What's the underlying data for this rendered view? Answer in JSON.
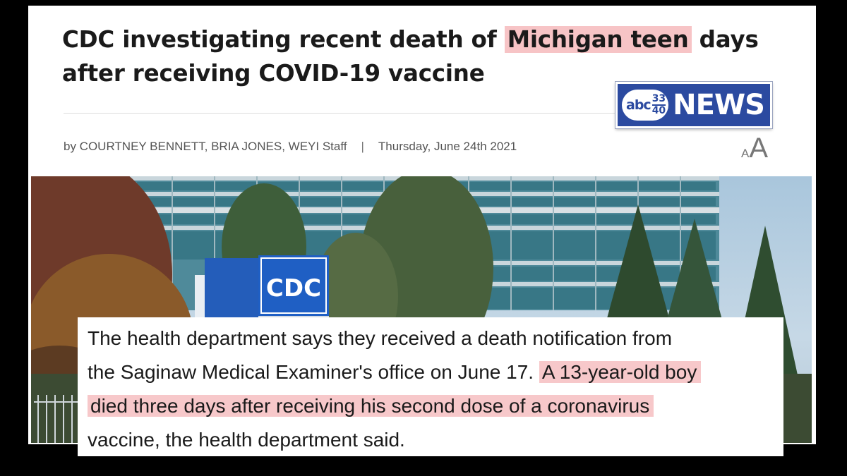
{
  "headline": {
    "before": "CDC investigating recent death of",
    "highlight": "Michigan teen",
    "after": "days",
    "line2": "after receiving COVID-19 vaccine"
  },
  "logo": {
    "abc": "abc",
    "num_top": "33",
    "num_bottom": "40",
    "news": "NEWS"
  },
  "byline": {
    "authors": "by COURTNEY BENNETT, BRIA JONES, WEYI Staff",
    "separator": "|",
    "date": "Thursday, June 24th 2021"
  },
  "font_toggle": {
    "small": "A",
    "large": "A"
  },
  "photo": {
    "sign_text": "CDC"
  },
  "quote": {
    "line1": "The health department says they received a death notification from",
    "line2_plain": "the Saginaw Medical Examiner's office on June 17.",
    "line2_highlight": "A 13-year-old boy",
    "line3_highlight": "died three days after receiving his second dose of a coronavirus",
    "line4": "vaccine, the health department said."
  },
  "colors": {
    "highlight": "#f7c4c6",
    "logo_blue": "#2b4aa0",
    "cdc_blue": "#1f5fc4"
  }
}
